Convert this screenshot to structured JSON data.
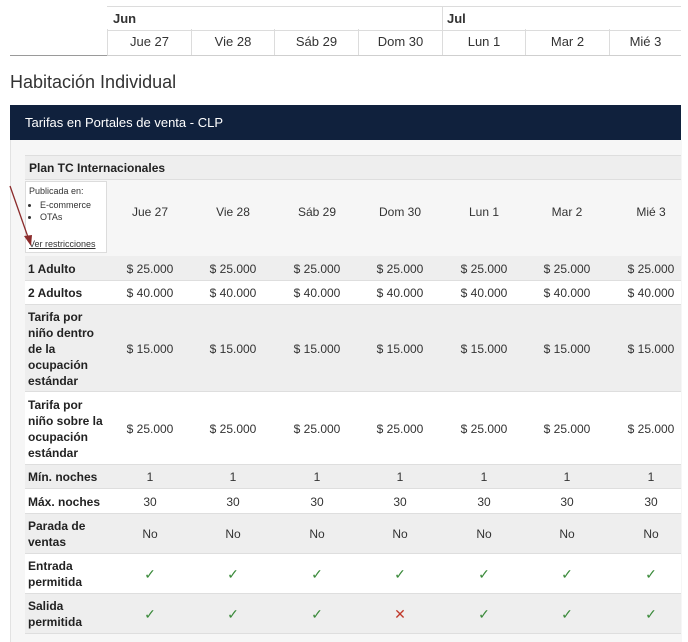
{
  "top_header": {
    "months": [
      "Jun",
      "Jul"
    ],
    "days": [
      "Jue 27",
      "Vie 28",
      "Sáb 29",
      "Dom 30",
      "Lun 1",
      "Mar 2",
      "Mié 3"
    ]
  },
  "room_title": "Habitación Individual",
  "panel_title": "Tarifas en Portales de venta - CLP",
  "plan": {
    "name": "Plan TC Internacionales",
    "published_label": "Publicada en:",
    "channels": [
      "E-commerce",
      "OTAs"
    ],
    "restrictions_link": "Ver restricciones"
  },
  "columns": [
    "Jue 27",
    "Vie 28",
    "Sáb 29",
    "Dom 30",
    "Lun 1",
    "Mar 2",
    "Mié 3"
  ],
  "rows": [
    {
      "label": "1 Adulto",
      "values": [
        "$ 25.000",
        "$ 25.000",
        "$ 25.000",
        "$ 25.000",
        "$ 25.000",
        "$ 25.000",
        "$ 25.000"
      ]
    },
    {
      "label": "2 Adultos",
      "values": [
        "$ 40.000",
        "$ 40.000",
        "$ 40.000",
        "$ 40.000",
        "$ 40.000",
        "$ 40.000",
        "$ 40.000"
      ]
    },
    {
      "label": "Tarifa por niño dentro de la ocupación estándar",
      "values": [
        "$ 15.000",
        "$ 15.000",
        "$ 15.000",
        "$ 15.000",
        "$ 15.000",
        "$ 15.000",
        "$ 15.000"
      ]
    },
    {
      "label": "Tarifa por niño sobre la ocupación estándar",
      "values": [
        "$ 25.000",
        "$ 25.000",
        "$ 25.000",
        "$ 25.000",
        "$ 25.000",
        "$ 25.000",
        "$ 25.000"
      ]
    },
    {
      "label": "Mín. noches",
      "values": [
        "1",
        "1",
        "1",
        "1",
        "1",
        "1",
        "1"
      ]
    },
    {
      "label": "Máx. noches",
      "values": [
        "30",
        "30",
        "30",
        "30",
        "30",
        "30",
        "30"
      ]
    },
    {
      "label": "Parada de ventas",
      "values": [
        "No",
        "No",
        "No",
        "No",
        "No",
        "No",
        "No"
      ]
    },
    {
      "label": "Entrada permitida",
      "values": [
        "check",
        "check",
        "check",
        "check",
        "check",
        "check",
        "check"
      ]
    },
    {
      "label": "Salida permitida",
      "values": [
        "check",
        "check",
        "check",
        "cross",
        "check",
        "check",
        "check"
      ]
    }
  ],
  "colors": {
    "panel_header": "#10213d",
    "check": "#3a8a3a",
    "cross": "#c0392b",
    "arrow": "#8b2b2b"
  }
}
